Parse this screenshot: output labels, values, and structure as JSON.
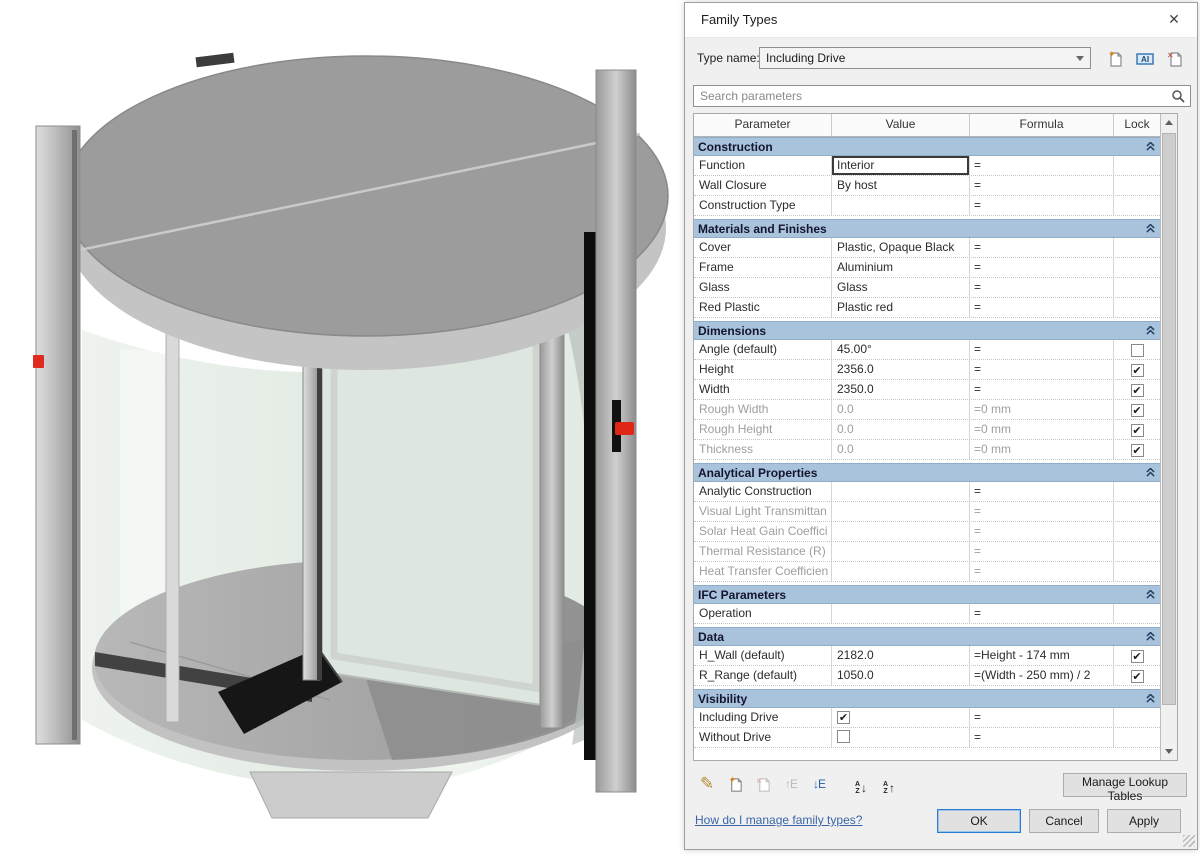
{
  "viewport": {
    "content": "3D view of a two-wing revolving door family",
    "colors": {
      "canopy_top": "#9c9c9c",
      "canopy_fascia": "#c4c4c4",
      "glass": "#e7eee8",
      "frame_metal": "#c0c0c0",
      "floor": "#adadad",
      "wing_dark": "#161616",
      "sensor_red": "#df2a1d"
    }
  },
  "dialog": {
    "title": "Family Types",
    "type_name_label": "Type name:",
    "type_name_value": "Including Drive",
    "search_placeholder": "Search parameters",
    "columns": [
      "Parameter",
      "Value",
      "Formula",
      "Lock"
    ],
    "icons": {
      "close": "✕",
      "check": "✔",
      "pencil": "✎",
      "arrow_up": "↑",
      "arrow_down": "↓",
      "letter_e": "E",
      "sort_a": "A",
      "sort_z": "Z",
      "new_type": "page-with-orange-star",
      "rename_type": "rename-text-box",
      "delete_type": "page-with-red-x",
      "new_parameter": "page-with-orange-star",
      "delete_parameter": "page-with-red-x",
      "search": "magnifier"
    },
    "sections": [
      {
        "name": "Construction",
        "rows": [
          {
            "param": "Function",
            "value": "Interior",
            "formula": "=",
            "lock": "none",
            "focused": true
          },
          {
            "param": "Wall Closure",
            "value": "By host",
            "formula": "=",
            "lock": "none"
          },
          {
            "param": "Construction Type",
            "value": "",
            "formula": "=",
            "lock": "none"
          }
        ]
      },
      {
        "name": "Materials and Finishes",
        "rows": [
          {
            "param": "Cover",
            "value": "Plastic, Opaque Black",
            "formula": "=",
            "lock": "none"
          },
          {
            "param": "Frame",
            "value": "Aluminium",
            "formula": "=",
            "lock": "none"
          },
          {
            "param": "Glass",
            "value": "Glass",
            "formula": "=",
            "lock": "none"
          },
          {
            "param": "Red Plastic",
            "value": "Plastic red",
            "formula": "=",
            "lock": "none"
          }
        ]
      },
      {
        "name": "Dimensions",
        "rows": [
          {
            "param": "Angle (default)",
            "value": "45.00°",
            "formula": "=",
            "lock": "unchecked"
          },
          {
            "param": "Height",
            "value": "2356.0",
            "formula": "=",
            "lock": "checked"
          },
          {
            "param": "Width",
            "value": "2350.0",
            "formula": "=",
            "lock": "checked"
          },
          {
            "param": "Rough Width",
            "value": "0.0",
            "formula": "=0 mm",
            "lock": "checked",
            "grey": true
          },
          {
            "param": "Rough Height",
            "value": "0.0",
            "formula": "=0 mm",
            "lock": "checked",
            "grey": true
          },
          {
            "param": "Thickness",
            "value": "0.0",
            "formula": "=0 mm",
            "lock": "checked",
            "grey": true
          }
        ]
      },
      {
        "name": "Analytical Properties",
        "rows": [
          {
            "param": "Analytic Construction",
            "value": "",
            "formula": "=",
            "lock": "none"
          },
          {
            "param": "Visual Light Transmittan",
            "value": "",
            "formula": "=",
            "lock": "none",
            "grey": true
          },
          {
            "param": "Solar Heat Gain Coeffici",
            "value": "",
            "formula": "=",
            "lock": "none",
            "grey": true
          },
          {
            "param": "Thermal Resistance (R)",
            "value": "",
            "formula": "=",
            "lock": "none",
            "grey": true
          },
          {
            "param": "Heat Transfer Coefficien",
            "value": "",
            "formula": "=",
            "lock": "none",
            "grey": true
          }
        ]
      },
      {
        "name": "IFC Parameters",
        "rows": [
          {
            "param": "Operation",
            "value": "",
            "formula": "=",
            "lock": "none"
          }
        ]
      },
      {
        "name": "Data",
        "rows": [
          {
            "param": "H_Wall (default)",
            "value": "2182.0",
            "formula": "=Height - 174 mm",
            "lock": "checked"
          },
          {
            "param": "R_Range (default)",
            "value": "1050.0",
            "formula": "=(Width - 250 mm) / 2",
            "lock": "checked"
          }
        ]
      },
      {
        "name": "Visibility",
        "rows": [
          {
            "param": "Including Drive",
            "value": "",
            "value_checkbox": "checked",
            "formula": "=",
            "lock": "none"
          },
          {
            "param": "Without Drive",
            "value": "",
            "value_checkbox": "unchecked",
            "formula": "=",
            "lock": "none"
          }
        ]
      }
    ],
    "footer": {
      "manage_lookup_tables": "Manage Lookup Tables",
      "help_link": "How do I manage family types?",
      "ok": "OK",
      "cancel": "Cancel",
      "apply": "Apply"
    },
    "accent_colors": {
      "section_header": "#a9c3dc",
      "focus_border": "#2b7cd3",
      "link_blue": "#3a66a8"
    }
  }
}
